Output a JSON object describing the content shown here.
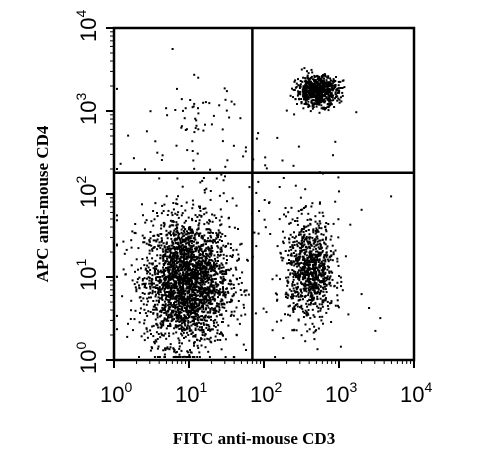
{
  "chart_data": {
    "type": "scatter",
    "plot_kind": "flow cytometry dot plot (quadrant gated)",
    "title": "",
    "xlabel": "FITC anti-mouse CD3",
    "ylabel": "APC anti-mouse CD4",
    "x_scale": "log",
    "y_scale": "log",
    "xlim": [
      1,
      10000
    ],
    "ylim": [
      1,
      10000
    ],
    "x_ticks": [
      {
        "value": 1,
        "base": "10",
        "exp": "0"
      },
      {
        "value": 10,
        "base": "10",
        "exp": "1"
      },
      {
        "value": 100,
        "base": "10",
        "exp": "2"
      },
      {
        "value": 1000,
        "base": "10",
        "exp": "3"
      },
      {
        "value": 10000,
        "base": "10",
        "exp": "4"
      }
    ],
    "y_ticks": [
      {
        "value": 1,
        "base": "10",
        "exp": "0"
      },
      {
        "value": 10,
        "base": "10",
        "exp": "1"
      },
      {
        "value": 100,
        "base": "10",
        "exp": "2"
      },
      {
        "value": 1000,
        "base": "10",
        "exp": "3"
      },
      {
        "value": 10000,
        "base": "10",
        "exp": "4"
      }
    ],
    "quadrant_gates": {
      "x": 70,
      "y": 180
    },
    "grid": false,
    "legend": "none",
    "point_color": "#000000",
    "populations": [
      {
        "label": "CD3- CD4- (lower-left)",
        "center_x": 9,
        "center_y": 9,
        "log_spread_x": 0.28,
        "log_spread_y": 0.38,
        "count": 2600
      },
      {
        "label": "CD3+ CD4- (lower-right)",
        "center_x": 400,
        "center_y": 12,
        "log_spread_x": 0.16,
        "log_spread_y": 0.3,
        "count": 900
      },
      {
        "label": "CD3+ CD4+ (upper-right)",
        "center_x": 500,
        "center_y": 1800,
        "log_spread_x": 0.14,
        "log_spread_y": 0.09,
        "count": 700
      },
      {
        "label": "CD3- CD4+ (upper-left)",
        "center_x": 12,
        "center_y": 900,
        "log_spread_x": 0.28,
        "log_spread_y": 0.22,
        "count": 45
      },
      {
        "label": "scattered events",
        "center_x": 60,
        "center_y": 60,
        "log_spread_x": 0.9,
        "log_spread_y": 0.7,
        "count": 170
      }
    ]
  }
}
